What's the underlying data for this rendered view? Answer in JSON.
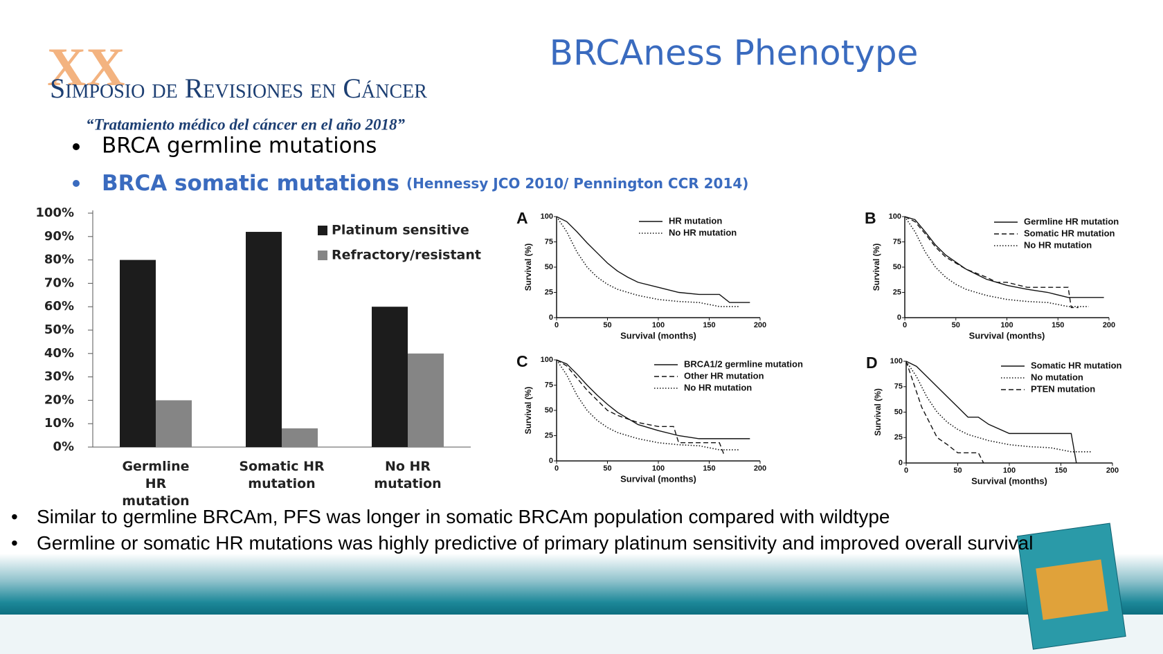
{
  "header": {
    "title": "BRCAness Phenotype",
    "logo_numeral": "XX",
    "logo_name": "Simposio de Revisiones en Cáncer",
    "logo_tagline": "“Tratamiento médico del cáncer en el año 2018”"
  },
  "top_bullets": [
    {
      "text": "BRCA germline mutations"
    },
    {
      "text": "BRCA somatic mutations",
      "reference": "(Hennessy JCO 2010/ Pennington CCR 2014)"
    }
  ],
  "bottom_bullets": [
    "Similar to germline BRCAm, PFS was longer in somatic BRCAm population compared with wildtype",
    "Germline or somatic HR mutations was highly predictive of primary platinum sensitivity and improved overall survival"
  ],
  "chart_data": [
    {
      "type": "bar",
      "categories": [
        "Germline HR mutation",
        "Somatic HR mutation",
        "No HR mutation"
      ],
      "series": [
        {
          "name": "Platinum sensitive",
          "color": "#1c1c1c",
          "values": [
            80,
            92,
            60
          ]
        },
        {
          "name": "Refractory/resistant",
          "color": "#858585",
          "values": [
            20,
            8,
            40
          ]
        }
      ],
      "ylim": [
        0,
        100
      ],
      "yticks": [
        {
          "value": 0,
          "label": "0%"
        },
        {
          "value": 10,
          "label": "10%"
        },
        {
          "value": 20,
          "label": "20%"
        },
        {
          "value": 30,
          "label": "30%"
        },
        {
          "value": 40,
          "label": "40%"
        },
        {
          "value": 50,
          "label": "50%"
        },
        {
          "value": 60,
          "label": "60%"
        },
        {
          "value": 70,
          "label": "70%"
        },
        {
          "value": 80,
          "label": "80%"
        },
        {
          "value": 90,
          "label": "90%"
        },
        {
          "value": 100,
          "label": "100%"
        }
      ]
    },
    {
      "type": "line",
      "panel": "A",
      "xlabel": "Survival (months)",
      "ylabel": "Survival (%)",
      "xlim": [
        0,
        200
      ],
      "ylim": [
        0,
        100
      ],
      "xticks": [
        0,
        50,
        100,
        150,
        200
      ],
      "yticks": [
        0,
        25,
        50,
        75,
        100
      ],
      "series": [
        {
          "name": "HR mutation",
          "color": "#111111",
          "dash": "solid",
          "x": [
            0,
            10,
            20,
            30,
            40,
            50,
            60,
            70,
            80,
            100,
            120,
            140,
            160,
            170,
            190
          ],
          "values": [
            100,
            95,
            85,
            74,
            64,
            54,
            46,
            40,
            35,
            30,
            25,
            23,
            23,
            15,
            15
          ]
        },
        {
          "name": "No HR mutation",
          "color": "#111111",
          "dash": "dotted",
          "x": [
            0,
            10,
            20,
            30,
            40,
            50,
            60,
            80,
            100,
            120,
            140,
            150,
            160,
            180
          ],
          "values": [
            100,
            85,
            65,
            50,
            40,
            33,
            28,
            22,
            18,
            16,
            15,
            13,
            11,
            11
          ]
        }
      ]
    },
    {
      "type": "line",
      "panel": "B",
      "xlabel": "Survival (months)",
      "ylabel": "Survival (%)",
      "xlim": [
        0,
        200
      ],
      "ylim": [
        0,
        100
      ],
      "xticks": [
        0,
        50,
        100,
        150,
        200
      ],
      "yticks": [
        0,
        25,
        50,
        75,
        100
      ],
      "series": [
        {
          "name": "Germline HR mutation",
          "color": "#111111",
          "dash": "solid",
          "x": [
            0,
            10,
            20,
            30,
            40,
            50,
            60,
            80,
            100,
            120,
            140,
            160,
            180,
            195
          ],
          "values": [
            100,
            97,
            85,
            72,
            62,
            55,
            48,
            38,
            32,
            28,
            25,
            20,
            20,
            20
          ]
        },
        {
          "name": "Somatic HR mutation",
          "color": "#111111",
          "dash": "dashed",
          "x": [
            0,
            10,
            20,
            30,
            40,
            60,
            80,
            90,
            100,
            120,
            140,
            160,
            163,
            170
          ],
          "values": [
            100,
            95,
            83,
            70,
            60,
            48,
            40,
            35,
            35,
            30,
            30,
            30,
            10,
            10
          ]
        },
        {
          "name": "No HR mutation",
          "color": "#111111",
          "dash": "dotted",
          "x": [
            0,
            10,
            20,
            30,
            40,
            50,
            60,
            80,
            100,
            120,
            140,
            150,
            160,
            180
          ],
          "values": [
            100,
            85,
            65,
            50,
            40,
            33,
            28,
            22,
            18,
            16,
            15,
            13,
            11,
            11
          ]
        }
      ]
    },
    {
      "type": "line",
      "panel": "C",
      "xlabel": "Survival (months)",
      "ylabel": "Survival (%)",
      "xlim": [
        0,
        200
      ],
      "ylim": [
        0,
        100
      ],
      "xticks": [
        0,
        50,
        100,
        150,
        200
      ],
      "yticks": [
        0,
        25,
        50,
        75,
        100
      ],
      "series": [
        {
          "name": "BRCA1/2 germline mutation",
          "color": "#111111",
          "dash": "solid",
          "x": [
            0,
            10,
            20,
            30,
            40,
            50,
            60,
            70,
            80,
            100,
            120,
            140,
            160,
            170,
            190
          ],
          "values": [
            100,
            96,
            86,
            75,
            65,
            56,
            48,
            42,
            36,
            30,
            25,
            22,
            22,
            22,
            22
          ]
        },
        {
          "name": "Other HR mutation",
          "color": "#111111",
          "dash": "dashed",
          "x": [
            0,
            10,
            20,
            30,
            40,
            50,
            60,
            80,
            100,
            115,
            120,
            140,
            160,
            165
          ],
          "values": [
            100,
            94,
            82,
            70,
            60,
            50,
            45,
            38,
            34,
            34,
            18,
            18,
            18,
            5
          ]
        },
        {
          "name": "No HR mutation",
          "color": "#111111",
          "dash": "dotted",
          "x": [
            0,
            10,
            20,
            30,
            40,
            50,
            60,
            80,
            100,
            120,
            140,
            150,
            160,
            180
          ],
          "values": [
            100,
            85,
            65,
            50,
            40,
            33,
            28,
            22,
            18,
            16,
            15,
            13,
            11,
            11
          ]
        }
      ]
    },
    {
      "type": "line",
      "panel": "D",
      "xlabel": "Survival (months)",
      "ylabel": "Survival (%)",
      "xlim": [
        0,
        200
      ],
      "ylim": [
        0,
        100
      ],
      "xticks": [
        0,
        50,
        100,
        150,
        200
      ],
      "yticks": [
        0,
        25,
        50,
        75,
        100
      ],
      "series": [
        {
          "name": "Somatic HR mutation",
          "color": "#111111",
          "dash": "solid",
          "x": [
            0,
            10,
            20,
            30,
            40,
            50,
            60,
            70,
            80,
            100,
            120,
            140,
            160,
            165
          ],
          "values": [
            100,
            95,
            85,
            75,
            65,
            55,
            45,
            45,
            38,
            29,
            29,
            29,
            29,
            0
          ]
        },
        {
          "name": "No mutation",
          "color": "#111111",
          "dash": "dotted",
          "x": [
            0,
            10,
            20,
            30,
            40,
            50,
            60,
            80,
            100,
            120,
            140,
            150,
            160,
            180
          ],
          "values": [
            100,
            85,
            65,
            50,
            40,
            33,
            28,
            22,
            18,
            16,
            15,
            13,
            11,
            11
          ]
        },
        {
          "name": "PTEN mutation",
          "color": "#111111",
          "dash": "dashed",
          "x": [
            0,
            5,
            10,
            15,
            20,
            30,
            40,
            50,
            70,
            75
          ],
          "values": [
            100,
            85,
            70,
            55,
            45,
            25,
            18,
            10,
            10,
            0
          ]
        }
      ]
    }
  ]
}
